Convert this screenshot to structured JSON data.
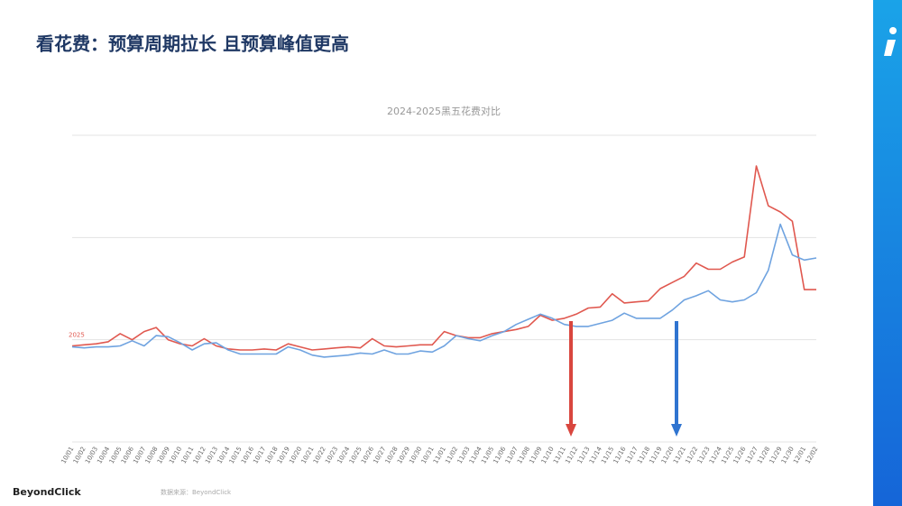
{
  "slide_title": "看花费：预算周期拉长 且预算峰值更高",
  "chart_data": {
    "type": "line",
    "title": "2024-2025黑五花费对比",
    "categories": [
      "10/01",
      "10/02",
      "10/03",
      "10/04",
      "10/05",
      "10/06",
      "10/07",
      "10/08",
      "10/09",
      "10/10",
      "10/11",
      "10/12",
      "10/13",
      "10/14",
      "10/15",
      "10/16",
      "10/17",
      "10/18",
      "10/19",
      "10/20",
      "10/21",
      "10/22",
      "10/23",
      "10/24",
      "10/25",
      "10/26",
      "10/27",
      "10/28",
      "10/29",
      "10/30",
      "10/31",
      "11/01",
      "11/02",
      "11/03",
      "11/04",
      "11/05",
      "11/06",
      "11/07",
      "11/08",
      "11/09",
      "11/10",
      "11/11",
      "11/12",
      "11/13",
      "11/14",
      "11/15",
      "11/16",
      "11/17",
      "11/18",
      "11/19",
      "11/20",
      "11/21",
      "11/22",
      "11/23",
      "11/24",
      "11/25",
      "11/26",
      "11/27",
      "11/28",
      "11/29",
      "11/30",
      "12/01",
      "12/02"
    ],
    "series": [
      {
        "name": "2025",
        "color": "#e0584f",
        "values": [
          94,
          95,
          96,
          98,
          106,
          100,
          108,
          112,
          100,
          96,
          94,
          101,
          94,
          91,
          90,
          90,
          91,
          90,
          96,
          93,
          90,
          91,
          92,
          93,
          92,
          101,
          94,
          93,
          94,
          95,
          95,
          108,
          104,
          102,
          102,
          106,
          108,
          110,
          113,
          124,
          119,
          121,
          125,
          131,
          132,
          145,
          136,
          137,
          138,
          150,
          156,
          162,
          175,
          169,
          169,
          176,
          181,
          270,
          231,
          225,
          216,
          149,
          149
        ]
      },
      {
        "color": "#6fa3e0",
        "values": [
          93,
          92,
          93,
          93,
          94,
          99,
          94,
          104,
          103,
          97,
          90,
          96,
          97,
          90,
          86,
          86,
          86,
          86,
          93,
          90,
          85,
          83,
          84,
          85,
          87,
          86,
          90,
          86,
          86,
          89,
          88,
          94,
          104,
          101,
          99,
          104,
          108,
          115,
          120,
          125,
          121,
          115,
          113,
          113,
          116,
          119,
          126,
          121,
          121,
          121,
          129,
          139,
          143,
          148,
          139,
          137,
          139,
          146,
          168,
          213,
          183,
          178,
          180
        ]
      }
    ],
    "ylim": [
      0,
      300
    ],
    "gridlines": [
      0,
      100,
      200,
      300
    ],
    "grid": true
  },
  "footer": {
    "logo": "BeyondClick",
    "source": "数据来源：BeyondClick"
  }
}
